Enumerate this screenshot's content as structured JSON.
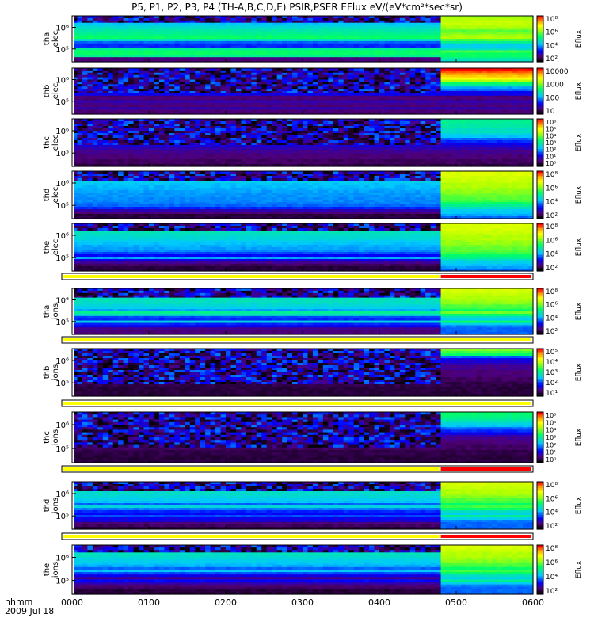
{
  "title": "P5, P1, P2, P3, P4 (TH-A,B,C,D,E) PSIR,PSER EFlux eV/(eV*cm²*sec*sr)",
  "time_axis": {
    "label_line1": "hhmm",
    "label_line2": "2009 Jul 18",
    "ticks": [
      "0000",
      "0100",
      "0200",
      "0300",
      "0400",
      "0500",
      "0600"
    ],
    "range_hours": [
      0,
      6
    ]
  },
  "colors": {
    "frame": "#000000",
    "status_ok": "#ffff00",
    "status_alert": "#ff0000"
  },
  "chart_data": {
    "type": "heatmap",
    "x_unit": "hours since 2009-07-18 00:00 UT",
    "regime_change_at_hhmm": "0448",
    "panels": [
      {
        "id": "tha-elec",
        "probe": "tha",
        "species": "elec",
        "ytick_labels": [
          "10⁶",
          "10⁵"
        ],
        "cbar_label": "Eflux",
        "cbar_ticks": [
          "10⁸",
          "10⁶",
          "10⁴",
          "10²"
        ],
        "profile_before": [
          0.25,
          0.3,
          0.35,
          0.38,
          0.42,
          0.45,
          0.48,
          0.5,
          0.52,
          0.55,
          0.45,
          0.3,
          0.25,
          0.25,
          0.5,
          0.55,
          0.55,
          0.5,
          0.1,
          0.1
        ],
        "profile_after": [
          0.68,
          0.7,
          0.72,
          0.72,
          0.7,
          0.68,
          0.62,
          0.65,
          0.68,
          0.7,
          0.6,
          0.5,
          0.4,
          0.4,
          0.45,
          0.6,
          0.55,
          0.55,
          0.5,
          0.45
        ],
        "noise_top_rows": 3
      },
      {
        "id": "thb-elec",
        "probe": "thb",
        "species": "elec",
        "ytick_labels": [
          "10⁶",
          "10⁵"
        ],
        "cbar_label": "Eflux",
        "cbar_ticks": [
          "10000",
          "1000",
          "100",
          "10"
        ],
        "profile_before": [
          1.0,
          0.95,
          0.9,
          0.85,
          0.8,
          0.7,
          0.55,
          0.5,
          0.35,
          0.3,
          0.2,
          0.2,
          0.1,
          0.1,
          0.15,
          0.12,
          0.1,
          0.15,
          0.1,
          0.1
        ],
        "profile_after": [
          1.0,
          0.95,
          0.9,
          0.85,
          0.8,
          0.7,
          0.55,
          0.5,
          0.35,
          0.3,
          0.2,
          0.2,
          0.1,
          0.1,
          0.15,
          0.12,
          0.1,
          0.15,
          0.1,
          0.1
        ],
        "noise_top_rows": 11
      },
      {
        "id": "thc-elec",
        "probe": "thc",
        "species": "elec",
        "ytick_labels": [
          "10⁶",
          "10⁵"
        ],
        "cbar_label": "Eflux",
        "cbar_ticks": [
          "10⁶",
          "10⁵",
          "10⁴",
          "10³",
          "10²",
          "10¹",
          "10⁰"
        ],
        "profile_before": [
          0.5,
          0.5,
          0.48,
          0.48,
          0.45,
          0.45,
          0.42,
          0.38,
          0.3,
          0.25,
          0.2,
          0.18,
          0.15,
          0.12,
          0.12,
          0.1,
          0.1,
          0.08,
          0.08,
          0.05
        ],
        "profile_after": [
          0.5,
          0.5,
          0.48,
          0.48,
          0.45,
          0.45,
          0.42,
          0.38,
          0.3,
          0.25,
          0.2,
          0.18,
          0.15,
          0.12,
          0.12,
          0.1,
          0.1,
          0.08,
          0.08,
          0.05
        ],
        "noise_top_rows": 11
      },
      {
        "id": "thd-elec",
        "probe": "thd",
        "species": "elec",
        "ytick_labels": [
          "10⁶",
          "10⁵"
        ],
        "cbar_label": "Eflux",
        "cbar_ticks": [
          "10⁸",
          "10⁶",
          "10⁴",
          "10²"
        ],
        "profile_before": [
          0.48,
          0.46,
          0.44,
          0.42,
          0.4,
          0.38,
          0.37,
          0.36,
          0.35,
          0.34,
          0.34,
          0.33,
          0.33,
          0.32,
          0.3,
          0.25,
          0.15,
          0.1,
          0.05,
          0.05
        ],
        "profile_after": [
          0.75,
          0.75,
          0.74,
          0.73,
          0.72,
          0.7,
          0.7,
          0.68,
          0.67,
          0.65,
          0.63,
          0.62,
          0.6,
          0.55,
          0.5,
          0.45,
          0.4,
          0.38,
          0.35,
          0.3
        ],
        "noise_top_rows": 4
      },
      {
        "id": "the-elec",
        "probe": "the",
        "species": "elec",
        "ytick_labels": [
          "10⁶",
          "10⁵"
        ],
        "cbar_label": "Eflux",
        "cbar_ticks": [
          "10⁸",
          "10⁶",
          "10⁴",
          "10²"
        ],
        "profile_before": [
          0.52,
          0.5,
          0.48,
          0.46,
          0.45,
          0.43,
          0.42,
          0.4,
          0.38,
          0.36,
          0.35,
          0.33,
          0.28,
          0.22,
          0.35,
          0.2,
          0.12,
          0.08,
          0.05,
          0.05
        ],
        "profile_after": [
          0.75,
          0.75,
          0.74,
          0.73,
          0.72,
          0.7,
          0.7,
          0.68,
          0.67,
          0.65,
          0.63,
          0.62,
          0.6,
          0.55,
          0.5,
          0.45,
          0.4,
          0.38,
          0.35,
          0.3
        ],
        "noise_top_rows": 3
      },
      {
        "id": "tha-ions",
        "probe": "tha",
        "species": "ions",
        "ytick_labels": [
          "10⁶",
          "10⁵"
        ],
        "cbar_label": "Eflux",
        "cbar_ticks": [
          "10⁸",
          "10⁶",
          "10⁴",
          "10²"
        ],
        "profile_before": [
          0.5,
          0.5,
          0.48,
          0.46,
          0.45,
          0.45,
          0.44,
          0.42,
          0.4,
          0.35,
          0.5,
          0.45,
          0.28,
          0.25,
          0.42,
          0.25,
          0.2,
          0.12,
          0.1,
          0.1
        ],
        "profile_after": [
          0.75,
          0.74,
          0.72,
          0.7,
          0.7,
          0.68,
          0.66,
          0.62,
          0.6,
          0.55,
          0.65,
          0.55,
          0.45,
          0.4,
          0.55,
          0.4,
          0.32,
          0.3,
          0.3,
          0.3
        ],
        "noise_top_rows": 4
      },
      {
        "id": "thb-ions",
        "probe": "thb",
        "species": "ions",
        "ytick_labels": [
          "10⁶",
          "10⁵"
        ],
        "cbar_label": "Eflux",
        "cbar_ticks": [
          "10⁵",
          "10⁴",
          "10³",
          "10²",
          "10¹"
        ],
        "profile_before": [
          0.65,
          0.6,
          0.55,
          0.3,
          0.2,
          0.18,
          0.15,
          0.12,
          0.12,
          0.1,
          0.1,
          0.1,
          0.08,
          0.08,
          0.06,
          0.06,
          0.05,
          0.05,
          0.05,
          0.05
        ],
        "profile_after": [
          0.65,
          0.6,
          0.55,
          0.3,
          0.2,
          0.18,
          0.15,
          0.12,
          0.12,
          0.1,
          0.1,
          0.1,
          0.08,
          0.08,
          0.06,
          0.06,
          0.05,
          0.05,
          0.05,
          0.05
        ],
        "noise_top_rows": 15
      },
      {
        "id": "thc-ions",
        "probe": "thc",
        "species": "ions",
        "ytick_labels": [
          "10⁶",
          "10⁵"
        ],
        "cbar_label": "Eflux",
        "cbar_ticks": [
          "10⁶",
          "10⁵",
          "10⁴",
          "10³",
          "10²",
          "10¹",
          "10⁰"
        ],
        "profile_before": [
          0.55,
          0.52,
          0.5,
          0.48,
          0.42,
          0.38,
          0.3,
          0.25,
          0.2,
          0.15,
          0.12,
          0.1,
          0.1,
          0.08,
          0.08,
          0.06,
          0.06,
          0.05,
          0.05,
          0.05
        ],
        "profile_after": [
          0.55,
          0.52,
          0.5,
          0.48,
          0.42,
          0.38,
          0.3,
          0.25,
          0.2,
          0.15,
          0.12,
          0.1,
          0.1,
          0.08,
          0.08,
          0.06,
          0.06,
          0.05,
          0.05,
          0.05
        ],
        "noise_top_rows": 14
      },
      {
        "id": "thd-ions",
        "probe": "thd",
        "species": "ions",
        "ytick_labels": [
          "10⁶",
          "10⁵"
        ],
        "cbar_label": "Eflux",
        "cbar_ticks": [
          "10⁸",
          "10⁶",
          "10⁴",
          "10²"
        ],
        "profile_before": [
          0.5,
          0.48,
          0.46,
          0.45,
          0.44,
          0.43,
          0.42,
          0.4,
          0.38,
          0.3,
          0.42,
          0.32,
          0.25,
          0.22,
          0.28,
          0.2,
          0.18,
          0.1,
          0.08,
          0.05
        ],
        "profile_after": [
          0.75,
          0.74,
          0.72,
          0.7,
          0.7,
          0.68,
          0.66,
          0.62,
          0.6,
          0.55,
          0.6,
          0.55,
          0.45,
          0.4,
          0.5,
          0.4,
          0.32,
          0.3,
          0.3,
          0.3
        ],
        "noise_top_rows": 4
      },
      {
        "id": "the-ions",
        "probe": "the",
        "species": "ions",
        "ytick_labels": [
          "10⁶",
          "10⁵"
        ],
        "cbar_label": "Eflux",
        "cbar_ticks": [
          "10⁸",
          "10⁶",
          "10⁴",
          "10²"
        ],
        "profile_before": [
          0.5,
          0.48,
          0.46,
          0.45,
          0.44,
          0.42,
          0.4,
          0.38,
          0.36,
          0.3,
          0.38,
          0.28,
          0.2,
          0.12,
          0.22,
          0.15,
          0.1,
          0.08,
          0.05,
          0.05
        ],
        "profile_after": [
          0.75,
          0.74,
          0.72,
          0.7,
          0.7,
          0.68,
          0.66,
          0.62,
          0.6,
          0.55,
          0.6,
          0.55,
          0.45,
          0.4,
          0.5,
          0.4,
          0.32,
          0.3,
          0.3,
          0.3
        ],
        "noise_top_rows": 3
      }
    ],
    "status_bars": [
      {
        "after_panel": "the-elec",
        "segments": [
          {
            "from_hhmm": "0000",
            "to_hhmm": "0448",
            "state": "ok"
          },
          {
            "from_hhmm": "0448",
            "to_hhmm": "0600",
            "state": "alert"
          }
        ]
      },
      {
        "after_panel": "tha-ions",
        "segments": [
          {
            "from_hhmm": "0000",
            "to_hhmm": "0600",
            "state": "ok"
          }
        ]
      },
      {
        "after_panel": "thb-ions",
        "segments": [
          {
            "from_hhmm": "0000",
            "to_hhmm": "0600",
            "state": "ok"
          }
        ]
      },
      {
        "after_panel": "thc-ions",
        "segments": [
          {
            "from_hhmm": "0000",
            "to_hhmm": "0448",
            "state": "ok"
          },
          {
            "from_hhmm": "0448",
            "to_hhmm": "0600",
            "state": "alert"
          }
        ]
      },
      {
        "after_panel": "thd-ions",
        "segments": [
          {
            "from_hhmm": "0000",
            "to_hhmm": "0448",
            "state": "ok"
          },
          {
            "from_hhmm": "0448",
            "to_hhmm": "0600",
            "state": "alert"
          }
        ]
      }
    ]
  }
}
